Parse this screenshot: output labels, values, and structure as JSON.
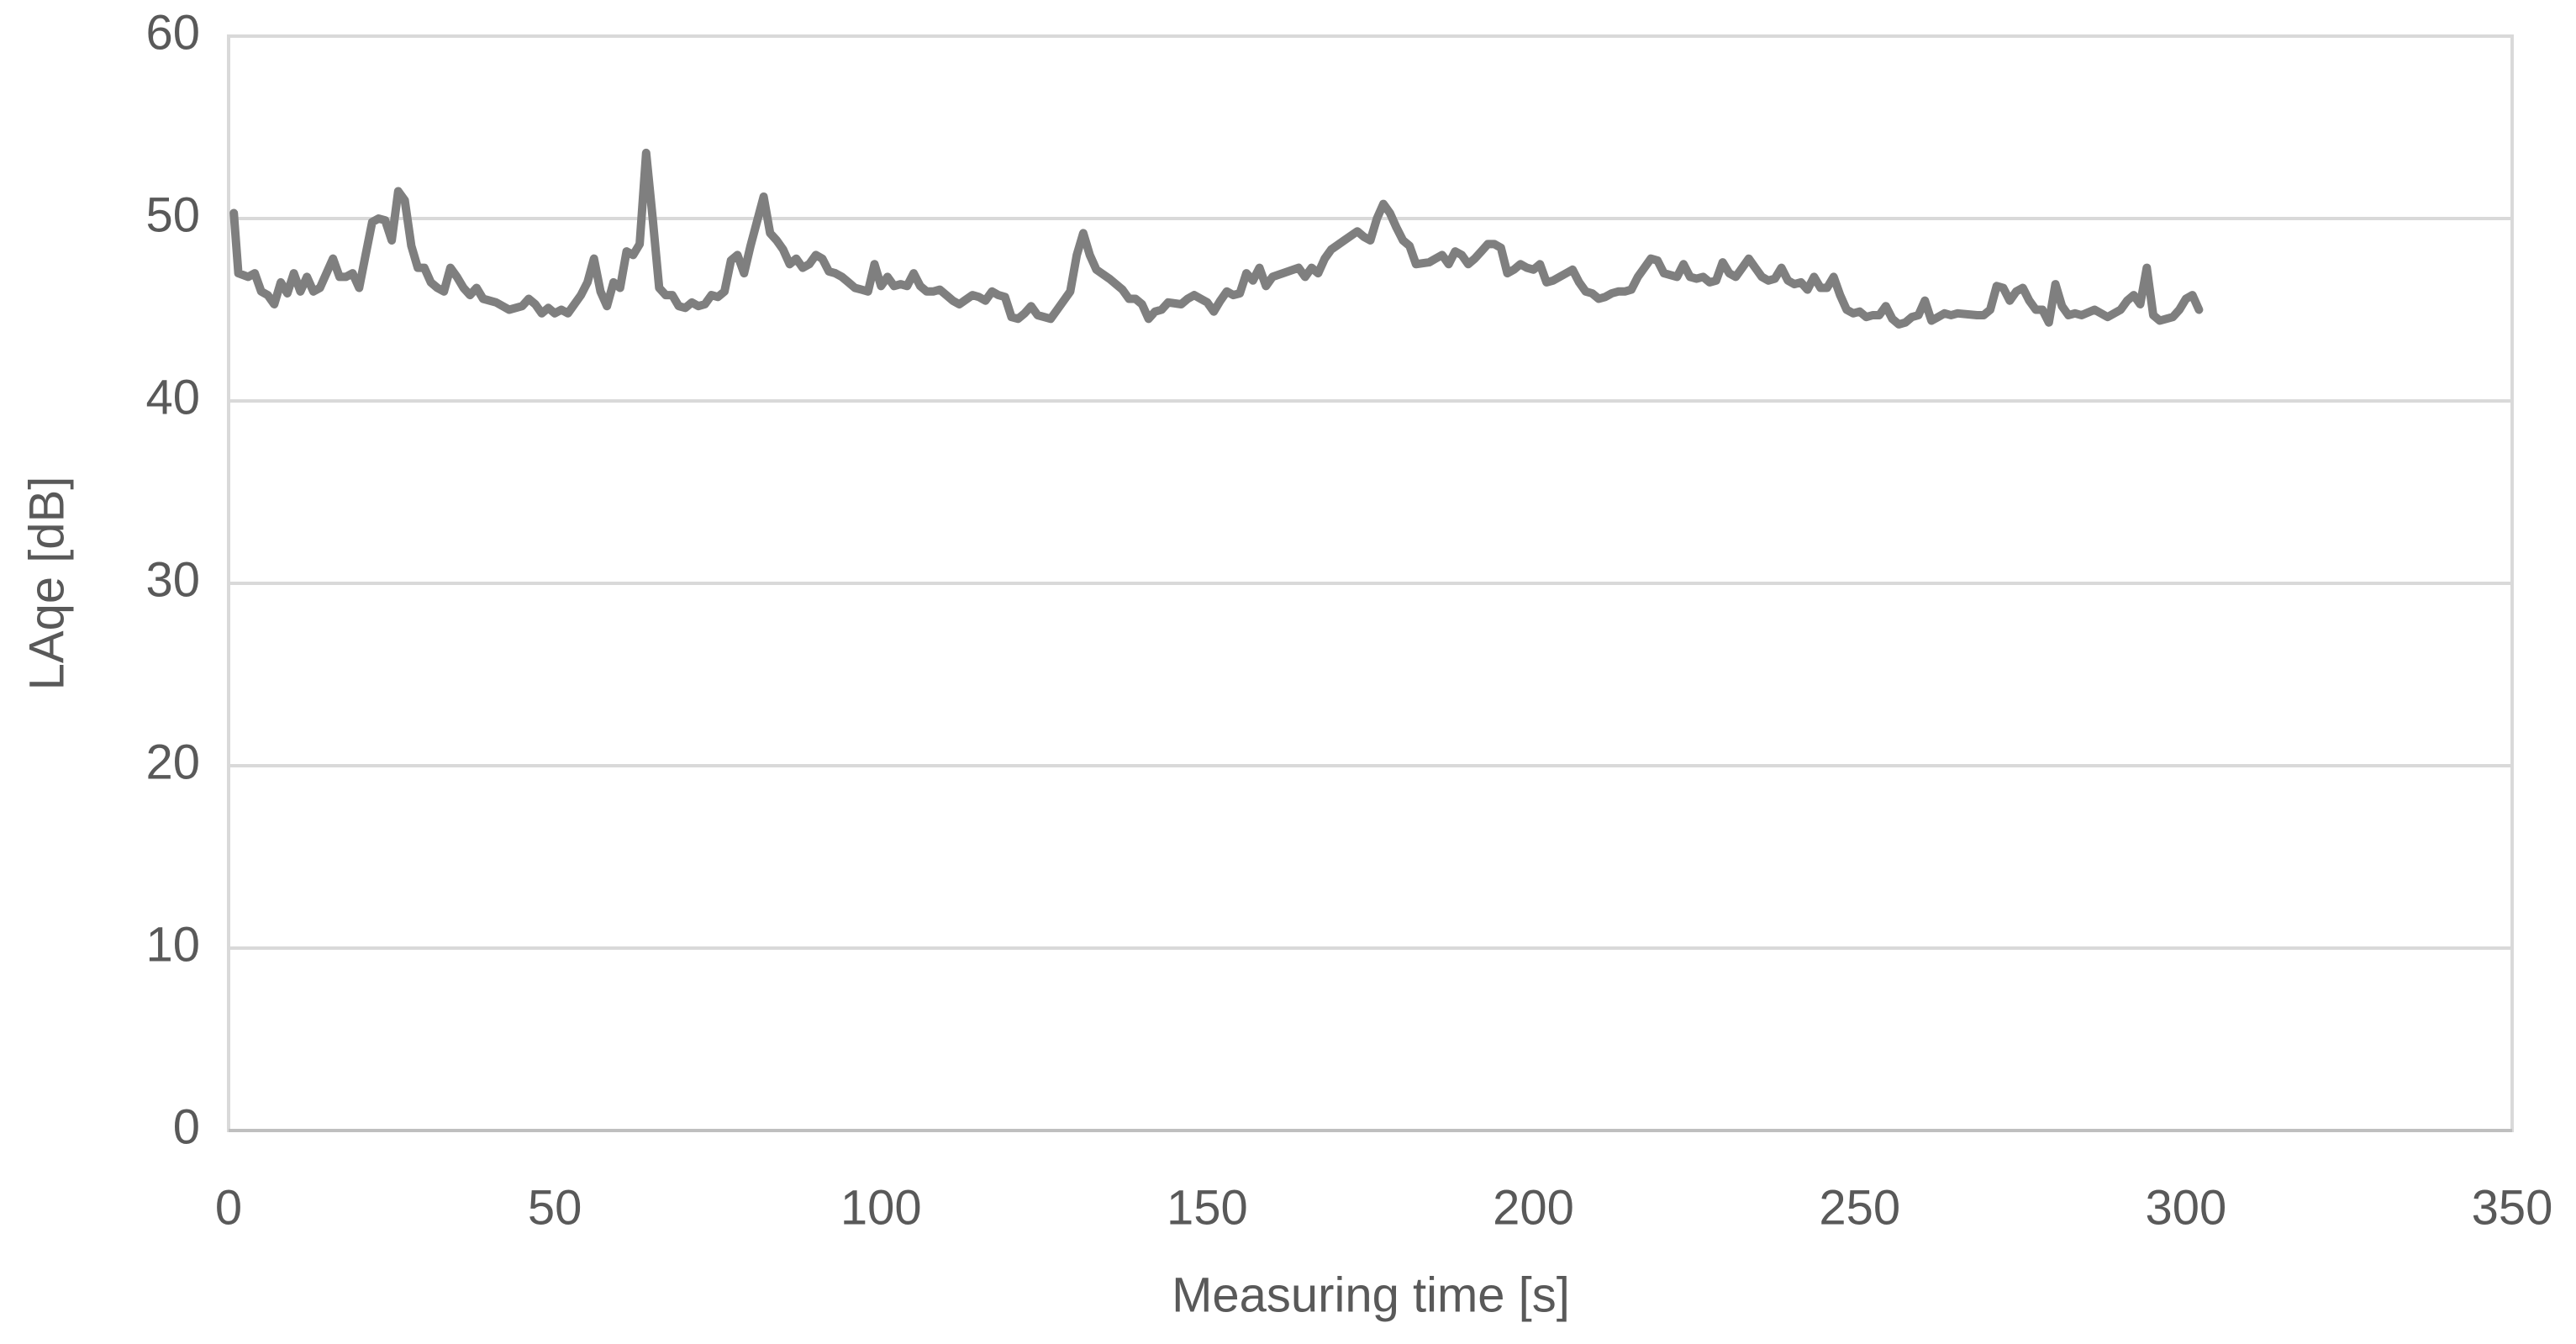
{
  "chart_data": {
    "type": "line",
    "xlabel": "Measuring time [s]",
    "ylabel": "LAqe [dB]",
    "xlim": [
      0,
      350
    ],
    "xticks": [
      0,
      50,
      100,
      150,
      200,
      250,
      300,
      350
    ],
    "ylim": [
      0,
      60
    ],
    "yticks": [
      0,
      10,
      20,
      30,
      40,
      50,
      60
    ],
    "grid": true,
    "series": [
      {
        "name": "LAqe",
        "color": "#7f7f7f",
        "x": [
          0.8,
          1.5,
          3,
          4,
          5,
          6,
          7,
          8,
          9,
          10,
          11,
          12,
          13,
          14,
          16,
          17,
          18,
          19,
          20,
          21,
          22,
          23,
          24,
          25,
          26,
          27,
          28,
          29,
          30,
          31,
          32,
          33,
          34,
          35,
          36,
          37,
          38,
          39,
          41,
          43,
          45,
          46,
          47,
          48,
          49,
          50,
          51,
          52,
          54,
          55,
          56,
          57,
          58,
          59,
          60,
          61,
          62,
          63,
          64,
          65,
          66,
          67,
          68,
          69,
          70,
          71,
          72,
          73,
          74,
          75,
          76,
          77,
          78,
          79,
          80,
          82,
          83,
          84,
          85,
          86,
          87,
          88,
          89,
          90,
          91,
          92,
          93,
          94,
          95,
          96,
          97,
          98,
          99,
          100,
          101,
          102,
          103,
          104,
          105,
          106,
          107,
          108,
          109,
          110,
          111,
          112,
          114,
          115,
          116,
          117,
          118,
          119,
          120,
          121,
          122,
          123,
          124,
          126,
          127,
          129,
          130,
          131,
          132,
          133,
          135,
          137,
          138,
          139,
          140,
          141,
          142,
          143,
          144,
          146,
          147,
          148,
          149,
          150,
          151,
          152,
          153,
          154,
          155,
          156,
          157,
          158,
          159,
          160,
          164,
          165,
          166,
          167,
          168,
          169,
          171,
          173,
          174,
          175,
          176,
          177,
          178,
          179,
          180,
          181,
          182,
          184,
          185,
          186,
          187,
          188,
          189,
          190,
          191,
          192,
          193,
          194,
          195,
          196,
          197,
          198,
          199,
          200,
          201,
          202,
          203,
          206,
          207,
          208,
          209,
          210,
          211,
          212,
          213,
          214,
          215,
          216,
          217,
          218,
          219,
          220,
          222,
          223,
          224,
          225,
          226,
          227,
          228,
          229,
          230,
          231,
          232,
          233,
          234,
          235,
          236,
          237,
          238,
          239,
          240,
          241,
          242,
          243,
          244,
          245,
          246,
          247,
          248,
          249,
          250,
          251,
          252,
          253,
          254,
          255,
          256,
          257,
          258,
          259,
          260,
          261,
          262,
          263,
          264,
          265,
          268,
          269,
          270,
          271,
          272,
          273,
          274,
          275,
          276,
          277,
          278,
          279,
          280,
          281,
          282,
          283,
          284,
          286,
          288,
          290,
          291,
          292,
          293,
          294,
          295,
          296,
          297,
          298,
          299,
          300,
          301,
          302
        ],
        "values": [
          50.3,
          47,
          46.8,
          47,
          46,
          45.8,
          45.3,
          46.5,
          45.9,
          47,
          46,
          46.8,
          46,
          46.2,
          47.8,
          46.8,
          46.8,
          47,
          46.2,
          48,
          49.8,
          50,
          49.9,
          48.8,
          51.5,
          51,
          48.5,
          47.3,
          47.3,
          46.5,
          46.2,
          46,
          47.3,
          46.8,
          46.2,
          45.8,
          46.2,
          45.6,
          45.4,
          45,
          45.2,
          45.6,
          45.3,
          44.8,
          45.1,
          44.8,
          45,
          44.8,
          45.8,
          46.5,
          47.8,
          46,
          45.2,
          46.5,
          46.2,
          48.2,
          48,
          48.6,
          53.6,
          50,
          46.2,
          45.8,
          45.8,
          45.2,
          45.1,
          45.4,
          45.2,
          45.3,
          45.8,
          45.7,
          46,
          47.7,
          48,
          47,
          48.5,
          51.2,
          49.2,
          48.8,
          48.3,
          47.5,
          47.8,
          47.3,
          47.5,
          48,
          47.8,
          47.1,
          47,
          46.8,
          46.5,
          46.2,
          46.1,
          46,
          47.5,
          46.3,
          46.8,
          46.3,
          46.4,
          46.3,
          47,
          46.3,
          46,
          46,
          46.1,
          45.8,
          45.5,
          45.3,
          45.8,
          45.7,
          45.5,
          46,
          45.8,
          45.7,
          44.6,
          44.5,
          44.8,
          45.2,
          44.7,
          44.5,
          45,
          46,
          48,
          49.2,
          48,
          47.2,
          46.7,
          46.1,
          45.6,
          45.6,
          45.3,
          44.5,
          44.9,
          45,
          45.4,
          45.3,
          45.6,
          45.8,
          45.6,
          45.4,
          44.9,
          45.5,
          46,
          45.8,
          45.9,
          47,
          46.6,
          47.3,
          46.3,
          46.8,
          47.3,
          46.8,
          47.3,
          47,
          47.8,
          48.3,
          48.8,
          49.3,
          49,
          48.8,
          50,
          50.8,
          50.3,
          49.5,
          48.8,
          48.5,
          47.5,
          47.6,
          47.8,
          48,
          47.5,
          48.2,
          48,
          47.5,
          47.8,
          48.2,
          48.6,
          48.6,
          48.4,
          47,
          47.2,
          47.5,
          47.3,
          47.2,
          47.5,
          46.5,
          46.6,
          47.2,
          46.5,
          46,
          45.9,
          45.6,
          45.7,
          45.9,
          46,
          46,
          46.1,
          46.8,
          47.3,
          47.8,
          47.7,
          47,
          46.8,
          47.5,
          46.8,
          46.7,
          46.8,
          46.5,
          46.6,
          47.6,
          47,
          46.8,
          47.3,
          47.8,
          47.3,
          46.8,
          46.6,
          46.7,
          47.3,
          46.6,
          46.4,
          46.5,
          46.1,
          46.8,
          46.2,
          46.2,
          46.8,
          45.8,
          45,
          44.8,
          44.9,
          44.6,
          44.7,
          44.7,
          45.2,
          44.5,
          44.2,
          44.3,
          44.6,
          44.7,
          45.5,
          44.4,
          44.6,
          44.8,
          44.7,
          44.8,
          44.7,
          44.7,
          45,
          46.3,
          46.2,
          45.5,
          46,
          46.2,
          45.5,
          45,
          45,
          44.3,
          46.4,
          45.2,
          44.7,
          44.8,
          44.7,
          45,
          44.6,
          45,
          45.5,
          45.8,
          45.3,
          47.3,
          44.7,
          44.4,
          44.5,
          44.6,
          45,
          45.6,
          45.8,
          45
        ]
      }
    ]
  }
}
